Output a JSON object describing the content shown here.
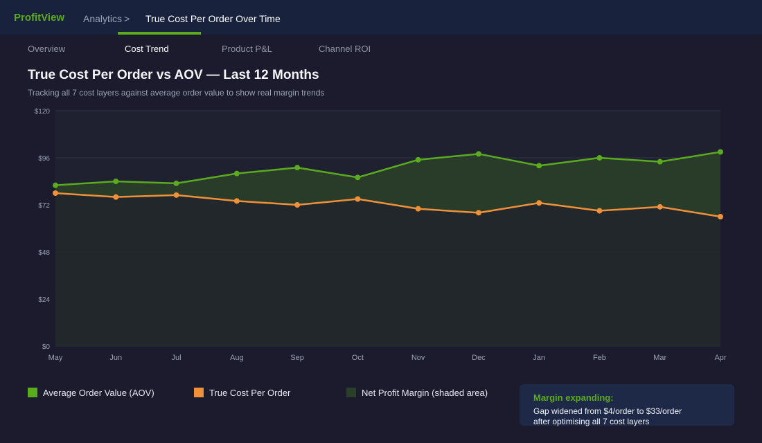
{
  "header": {
    "brand": "ProfitView",
    "breadcrumb_parent": "Analytics",
    "breadcrumb_separator": ">",
    "breadcrumb_current": "True Cost Per Order Over Time"
  },
  "tabs": [
    {
      "label": "Overview",
      "active": false
    },
    {
      "label": "Cost Trend",
      "active": true
    },
    {
      "label": "Product P&L",
      "active": false
    },
    {
      "label": "Channel ROI",
      "active": false
    }
  ],
  "page": {
    "title": "True Cost Per Order vs AOV — Last 12 Months",
    "subtitle": "Tracking all 7 cost layers against average order value to show real margin trends"
  },
  "colors": {
    "accent": "#5aab1e",
    "aov": "#5aab1e",
    "cost": "#f0913a",
    "margin_area": "#2a3f2a"
  },
  "chart_data": {
    "type": "line",
    "categories": [
      "May",
      "Jun",
      "Jul",
      "Aug",
      "Sep",
      "Oct",
      "Nov",
      "Dec",
      "Jan",
      "Feb",
      "Mar",
      "Apr"
    ],
    "series": [
      {
        "name": "Average Order Value (AOV)",
        "values": [
          82,
          84,
          83,
          88,
          91,
          86,
          95,
          98,
          92,
          96,
          94,
          99
        ]
      },
      {
        "name": "True Cost Per Order",
        "values": [
          78,
          76,
          77,
          74,
          72,
          75,
          70,
          68,
          73,
          69,
          71,
          66
        ]
      }
    ],
    "shaded_area_label": "Net Profit Margin (shaded area)",
    "ylim": [
      0,
      120
    ],
    "yticks": [
      0,
      24,
      48,
      72,
      96,
      120
    ],
    "ytick_labels": [
      "$0",
      "$24",
      "$48",
      "$72",
      "$96",
      "$120"
    ],
    "grid": true,
    "legend": "bottom-left"
  },
  "legend": [
    {
      "label": "Average Order Value (AOV)",
      "color": "#5aab1e"
    },
    {
      "label": "True Cost Per Order",
      "color": "#f0913a"
    },
    {
      "label": "Net Profit Margin (shaded area)",
      "color": "#2a3f2a"
    }
  ],
  "callout": {
    "title": "Margin expanding:",
    "body": "Gap widened from $4/order to $33/order\nafter optimising all 7 cost layers"
  }
}
